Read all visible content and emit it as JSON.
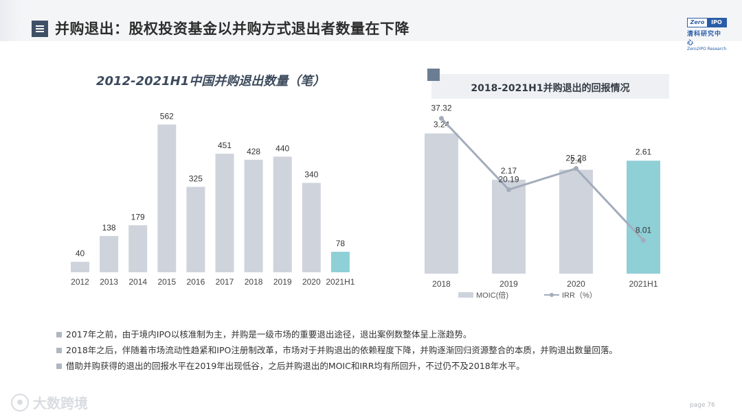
{
  "header": {
    "title": "并购退出：股权投资基金以并购方式退出者数量在下降",
    "logo_brand_left": "Zero",
    "logo_brand_right": "IPO",
    "logo_cn": "清科研究中心",
    "logo_en": "Zero2IPO Research"
  },
  "chart_data": [
    {
      "type": "bar",
      "title": "2012-2021H1中国并购退出数量（笔）",
      "categories": [
        "2012",
        "2013",
        "2014",
        "2015",
        "2016",
        "2017",
        "2018",
        "2019",
        "2020",
        "2021H1"
      ],
      "values": [
        40,
        138,
        179,
        562,
        325,
        451,
        428,
        440,
        340,
        78
      ],
      "highlight_index": 9,
      "colors": {
        "bar": "#cfd3dc",
        "highlight": "#8fcfd6"
      },
      "ylim": [
        0,
        600
      ],
      "grid": false
    },
    {
      "type": "bar+line",
      "title": "2018-2021H1并购退出的回报情况",
      "categories": [
        "2018",
        "2019",
        "2020",
        "2021H1"
      ],
      "series": [
        {
          "name": "MOIC(倍)",
          "type": "bar",
          "values": [
            3.24,
            2.17,
            2.4,
            2.61
          ],
          "ylim": [
            0,
            5.15
          ]
        },
        {
          "name": "IRR（%）",
          "type": "line",
          "values": [
            37.32,
            20.19,
            25.28,
            8.01
          ],
          "ylim": [
            0,
            45
          ]
        }
      ],
      "highlight_index": 3,
      "colors": {
        "bar": "#cfd3dc",
        "highlight": "#8fcfd6",
        "line": "#a3acbb"
      },
      "legend": "bottom",
      "grid": false
    }
  ],
  "bullets": [
    "2017年之前，由于境内IPO以核准制为主，并购是一级市场的重要退出途径，退出案例数整体呈上涨趋势。",
    "2018年之后，伴随着市场流动性趋紧和IPO注册制改革，市场对于并购退出的依赖程度下降，并购逐渐回归资源整合的本质，并购退出数量回落。",
    "借助并购获得的退出的回报水平在2019年出现低谷，之后并购退出的MOIC和IRR均有所回升，不过仍不及2018年水平。"
  ],
  "footer": {
    "watermark": "大数跨境",
    "page": "page 76"
  }
}
